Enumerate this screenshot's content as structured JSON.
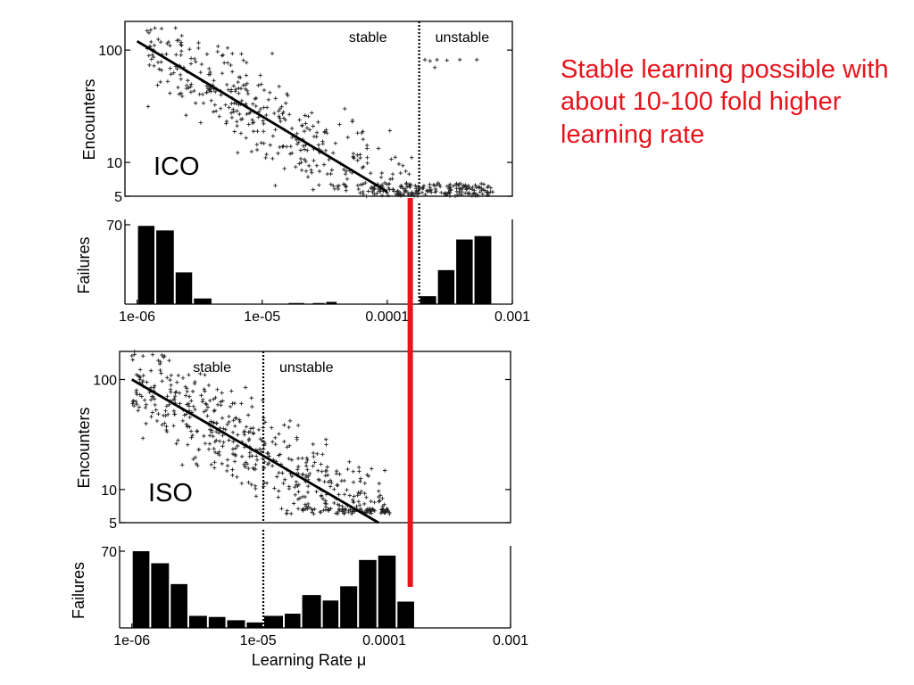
{
  "annotation": "Stable learning possible with about 10-100 fold higher learning rate",
  "colors": {
    "annotation": "#e8131b",
    "marker": "#e8131b",
    "ink": "#000000"
  },
  "xaxis": {
    "label": "Learning Rate μ",
    "scale": "log",
    "range": [
      8e-07,
      0.001
    ],
    "ticks": [
      1e-06,
      1e-05,
      0.0001,
      0.001
    ],
    "tick_labels": [
      "1e-06",
      "1e-05",
      "0.0001",
      "0.001"
    ]
  },
  "red_marker_x": 0.00018,
  "chart_data": [
    {
      "id": "ico",
      "type": "scatter",
      "panel_label": "ICO",
      "ylabel": "Encounters",
      "yscale": "log",
      "ylim": [
        5,
        180
      ],
      "yticks": [
        5,
        10,
        100
      ],
      "ytick_labels": [
        "5",
        "10",
        "100"
      ],
      "regions": [
        {
          "label": "stable"
        },
        {
          "label": "unstable"
        }
      ],
      "stability_boundary_x": 0.00018,
      "fit_line": {
        "x": [
          1e-06,
          0.0001
        ],
        "y": [
          120,
          5.5
        ]
      },
      "scatter_model": {
        "x_range": [
          1.2e-06,
          0.0007
        ],
        "y_floor": 5,
        "y_baseline": 6,
        "unstable_cluster": [
          [
            0.0002,
            82
          ],
          [
            0.00022,
            80
          ],
          [
            0.00025,
            82
          ],
          [
            0.0003,
            81
          ],
          [
            0.00038,
            82
          ],
          [
            0.00052,
            82
          ],
          [
            0.00024,
            70
          ]
        ]
      }
    },
    {
      "id": "ico-failures",
      "type": "bar",
      "ylabel": "Failures",
      "ylim": [
        0,
        70
      ],
      "yticks": [
        70
      ],
      "ytick_labels": [
        "70"
      ],
      "stability_boundary_x": 0.00018,
      "bars": [
        {
          "x0": 1e-06,
          "x1": 1.4e-06,
          "value": 69
        },
        {
          "x0": 1.4e-06,
          "x1": 2e-06,
          "value": 65
        },
        {
          "x0": 2e-06,
          "x1": 2.8e-06,
          "value": 28
        },
        {
          "x0": 2.8e-06,
          "x1": 4e-06,
          "value": 5
        },
        {
          "x0": 1.6e-05,
          "x1": 2.2e-05,
          "value": 1
        },
        {
          "x0": 2.5e-05,
          "x1": 3.2e-05,
          "value": 1
        },
        {
          "x0": 3.2e-05,
          "x1": 4e-05,
          "value": 2
        },
        {
          "x0": 0.00018,
          "x1": 0.00025,
          "value": 7
        },
        {
          "x0": 0.00025,
          "x1": 0.00035,
          "value": 30
        },
        {
          "x0": 0.00035,
          "x1": 0.00049,
          "value": 57
        },
        {
          "x0": 0.00049,
          "x1": 0.00069,
          "value": 60
        }
      ]
    },
    {
      "id": "iso",
      "type": "scatter",
      "panel_label": "ISO",
      "ylabel": "Encounters",
      "yscale": "log",
      "ylim": [
        5,
        180
      ],
      "yticks": [
        5,
        10,
        100
      ],
      "ytick_labels": [
        "5",
        "10",
        "100"
      ],
      "regions": [
        {
          "label": "stable"
        },
        {
          "label": "unstable"
        }
      ],
      "stability_boundary_x": 1.1e-05,
      "fit_line": {
        "x": [
          1e-06,
          9e-05
        ],
        "y": [
          100,
          5
        ]
      },
      "scatter_model": {
        "x_range": [
          1e-06,
          0.00011
        ],
        "y_floor": 6
      }
    },
    {
      "id": "iso-failures",
      "type": "bar",
      "ylabel": "Failures",
      "ylim": [
        0,
        70
      ],
      "yticks": [
        70
      ],
      "ytick_labels": [
        "70"
      ],
      "stability_boundary_x": 1.1e-05,
      "bars": [
        {
          "x0": 1e-06,
          "x1": 1.4e-06,
          "value": 70
        },
        {
          "x0": 1.4e-06,
          "x1": 2e-06,
          "value": 59
        },
        {
          "x0": 2e-06,
          "x1": 2.8e-06,
          "value": 40
        },
        {
          "x0": 2.8e-06,
          "x1": 4e-06,
          "value": 11
        },
        {
          "x0": 4e-06,
          "x1": 5.6e-06,
          "value": 10
        },
        {
          "x0": 5.6e-06,
          "x1": 8e-06,
          "value": 7
        },
        {
          "x0": 8e-06,
          "x1": 1.1e-05,
          "value": 5
        },
        {
          "x0": 1.1e-05,
          "x1": 1.6e-05,
          "value": 11
        },
        {
          "x0": 1.6e-05,
          "x1": 2.2e-05,
          "value": 13
        },
        {
          "x0": 2.2e-05,
          "x1": 3.2e-05,
          "value": 30
        },
        {
          "x0": 3.2e-05,
          "x1": 4.4e-05,
          "value": 25
        },
        {
          "x0": 4.4e-05,
          "x1": 6.2e-05,
          "value": 38
        },
        {
          "x0": 6.2e-05,
          "x1": 8.8e-05,
          "value": 62
        },
        {
          "x0": 8.8e-05,
          "x1": 0.000125,
          "value": 66
        },
        {
          "x0": 0.000125,
          "x1": 0.000175,
          "value": 24
        }
      ]
    }
  ]
}
